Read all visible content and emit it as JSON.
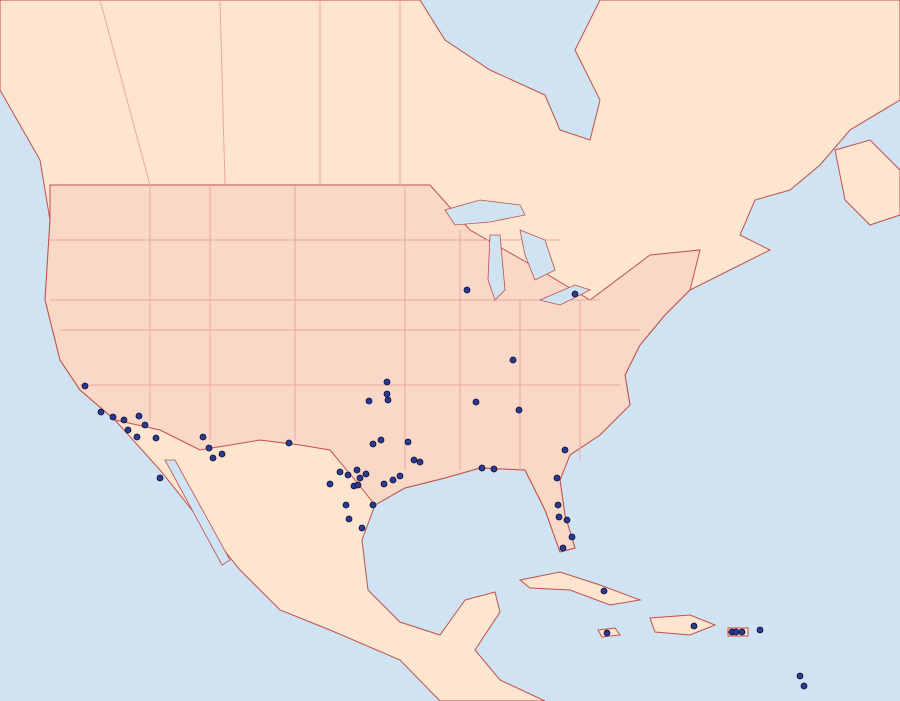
{
  "map": {
    "colors": {
      "ocean": "#cfe3f2",
      "land": "#fde5d0",
      "us_region": "#f9d8c8",
      "border": "#c0504d",
      "county_line": "#e8a9a0",
      "marker_fill": "#2b3a8f",
      "marker_stroke": "#0a0f33"
    },
    "marker_icon": "occurrence-dot-icon"
  }
}
